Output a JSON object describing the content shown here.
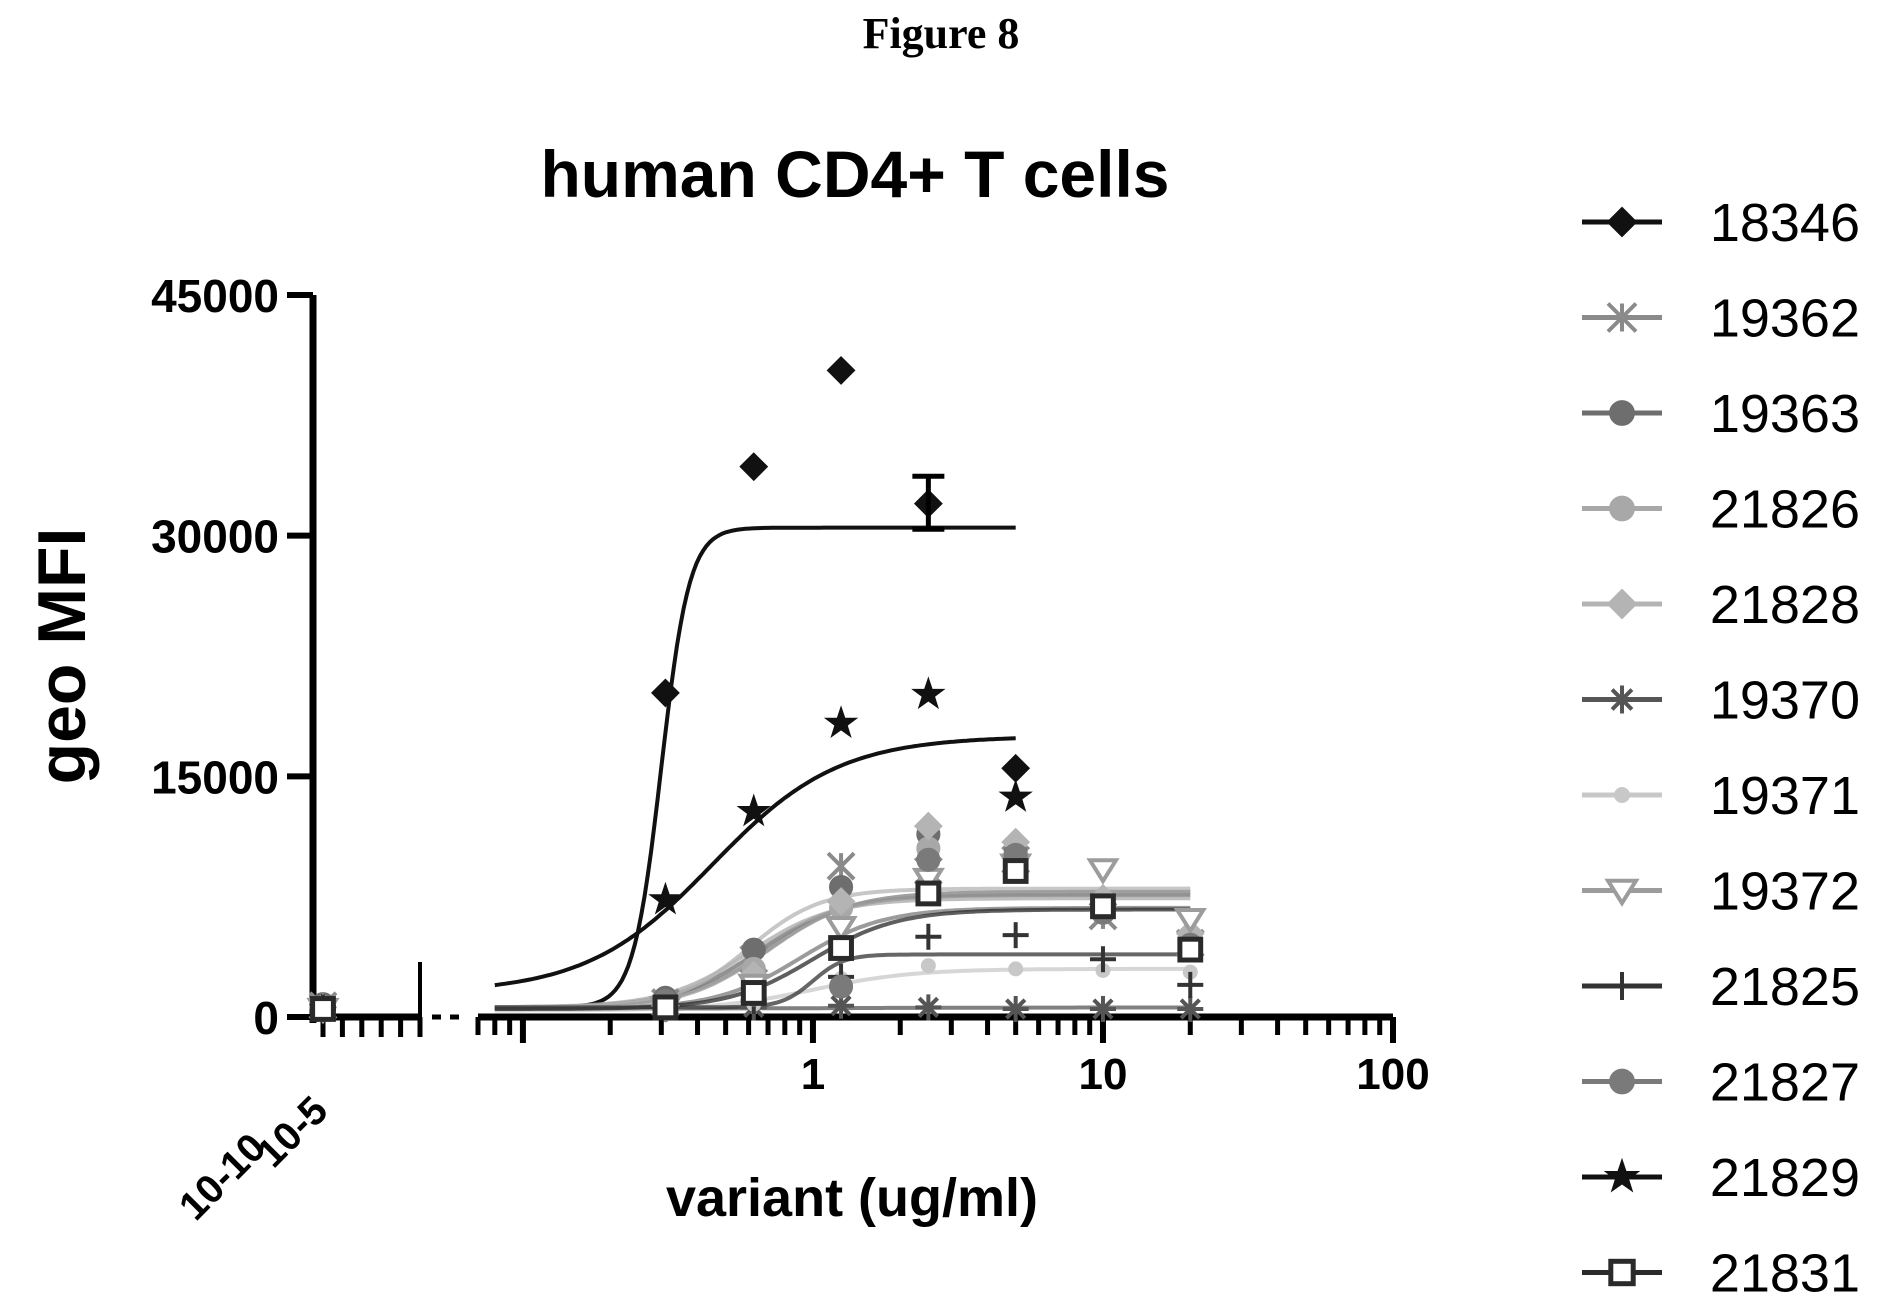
{
  "figure_label": "Figure 8",
  "chart_data": {
    "type": "scatter",
    "title": "human CD4+ T cells",
    "xlabel": "variant (ug/ml)",
    "ylabel": "geo MFI",
    "x_scale": "log",
    "x_segments": [
      {
        "ticks": [
          "10-10",
          "10-5"
        ],
        "range": [
          1e-10,
          1e-05
        ]
      },
      {
        "ticks": [
          "1",
          "10",
          "100"
        ],
        "range": [
          0.07,
          100
        ]
      }
    ],
    "yticks": [
      "0",
      "15000",
      "30000",
      "45000"
    ],
    "ylim": [
      0,
      45000
    ],
    "legend_position": "right",
    "series": [
      {
        "name": "18346",
        "color": "#111111",
        "marker": "diamond",
        "points": [
          [
            0.31,
            20200
          ],
          [
            0.625,
            34300
          ],
          [
            1.25,
            40300
          ],
          [
            2.5,
            32000
          ],
          [
            5,
            15500
          ]
        ],
        "fit": {
          "bottom": 600,
          "top": 30500,
          "ec50": 0.3,
          "hill": 9,
          "xmin": 0.08,
          "xmax": 5
        }
      },
      {
        "name": "19362",
        "color": "#8a8a8a",
        "marker": "x",
        "points": [
          [
            1e-10,
            700
          ],
          [
            0.31,
            900
          ],
          [
            0.625,
            3600
          ],
          [
            1.25,
            9400
          ],
          [
            2.5,
            9100
          ],
          [
            5,
            9800
          ],
          [
            10,
            6300
          ],
          [
            20,
            4600
          ]
        ],
        "fit": {
          "bottom": 600,
          "top": 7800,
          "ec50": 0.7,
          "hill": 3,
          "xmin": 0.08,
          "xmax": 20
        }
      },
      {
        "name": "19363",
        "color": "#6e6e6e",
        "marker": "octagon",
        "points": [
          [
            1e-10,
            800
          ],
          [
            0.31,
            1200
          ],
          [
            0.625,
            4200
          ],
          [
            1.25,
            8100
          ],
          [
            2.5,
            11400
          ],
          [
            5,
            10200
          ],
          [
            10,
            6600
          ],
          [
            20,
            4600
          ]
        ],
        "fit": {
          "bottom": 600,
          "top": 7600,
          "ec50": 0.65,
          "hill": 3,
          "xmin": 0.08,
          "xmax": 20
        }
      },
      {
        "name": "21826",
        "color": "#a8a8a8",
        "marker": "circle",
        "points": [
          [
            1e-10,
            600
          ],
          [
            0.31,
            800
          ],
          [
            0.625,
            3000
          ],
          [
            1.25,
            6800
          ],
          [
            2.5,
            10500
          ],
          [
            5,
            10000
          ],
          [
            10,
            6800
          ],
          [
            20,
            5000
          ]
        ],
        "fit": {
          "bottom": 600,
          "top": 7400,
          "ec50": 0.6,
          "hill": 3,
          "xmin": 0.08,
          "xmax": 20
        }
      },
      {
        "name": "21828",
        "color": "#b4b4b4",
        "marker": "diamond",
        "points": [
          [
            1e-10,
            600
          ],
          [
            0.31,
            700
          ],
          [
            0.625,
            2600
          ],
          [
            1.25,
            7200
          ],
          [
            2.5,
            11900
          ],
          [
            5,
            10900
          ],
          [
            10,
            7400
          ],
          [
            20,
            5200
          ]
        ],
        "fit": {
          "bottom": 600,
          "top": 8000,
          "ec50": 0.6,
          "hill": 3.5,
          "xmin": 0.08,
          "xmax": 20
        }
      },
      {
        "name": "19370",
        "color": "#555555",
        "marker": "asterisk",
        "points": [
          [
            1e-10,
            500
          ],
          [
            0.31,
            500
          ],
          [
            0.625,
            600
          ],
          [
            1.25,
            700
          ],
          [
            2.5,
            600
          ],
          [
            5,
            500
          ],
          [
            10,
            500
          ],
          [
            20,
            500
          ]
        ],
        "fit": {
          "bottom": 500,
          "top": 600,
          "ec50": 1,
          "hill": 1,
          "xmin": 0.08,
          "xmax": 20
        }
      },
      {
        "name": "19371",
        "color": "#c8c8c8",
        "marker": "dot",
        "points": [
          [
            1e-10,
            400
          ],
          [
            0.31,
            500
          ],
          [
            0.625,
            800
          ],
          [
            1.25,
            2400
          ],
          [
            2.5,
            3200
          ],
          [
            5,
            3000
          ],
          [
            10,
            2900
          ],
          [
            20,
            2800
          ]
        ],
        "fit": {
          "bottom": 400,
          "top": 3000,
          "ec50": 1,
          "hill": 2.5,
          "xmin": 0.08,
          "xmax": 20
        }
      },
      {
        "name": "19372",
        "color": "#9c9c9c",
        "marker": "triangle-down",
        "points": [
          [
            1e-10,
            500
          ],
          [
            0.31,
            600
          ],
          [
            0.625,
            2000
          ],
          [
            1.25,
            5600
          ],
          [
            2.5,
            8600
          ],
          [
            5,
            9500
          ],
          [
            10,
            9200
          ],
          [
            20,
            6100
          ]
        ],
        "fit": {
          "bottom": 500,
          "top": 7800,
          "ec50": 0.7,
          "hill": 3,
          "xmin": 0.08,
          "xmax": 20
        }
      },
      {
        "name": "21825",
        "color": "#333333",
        "marker": "plus",
        "points": [
          [
            1e-10,
            600
          ],
          [
            0.31,
            700
          ],
          [
            0.625,
            1000
          ],
          [
            1.25,
            2500
          ],
          [
            2.5,
            5000
          ],
          [
            5,
            5100
          ],
          [
            10,
            3600
          ],
          [
            20,
            2000
          ]
        ],
        "fit": {
          "bottom": 600,
          "top": 3900,
          "ec50": 1.0,
          "hill": 8,
          "xmin": 0.08,
          "xmax": 20
        }
      },
      {
        "name": "21827",
        "color": "#7a7a7a",
        "marker": "octagon",
        "points": [
          [
            1e-10,
            500
          ],
          [
            0.31,
            1000
          ],
          [
            0.625,
            1400
          ],
          [
            1.25,
            1900
          ],
          [
            2.5,
            9800
          ],
          [
            5,
            10100
          ],
          [
            10,
            6500
          ],
          [
            20,
            4500
          ]
        ],
        "fit": {
          "bottom": 500,
          "top": 6800,
          "ec50": 0.9,
          "hill": 3,
          "xmin": 0.08,
          "xmax": 20
        }
      },
      {
        "name": "21829",
        "color": "#111111",
        "marker": "star",
        "points": [
          [
            0.31,
            7300
          ],
          [
            0.625,
            12800
          ],
          [
            1.25,
            18300
          ],
          [
            2.5,
            20100
          ],
          [
            5,
            13700
          ]
        ],
        "fit": {
          "bottom": 1500,
          "top": 17500,
          "ec50": 0.45,
          "hill": 2,
          "xmin": 0.08,
          "xmax": 5
        }
      },
      {
        "name": "21831",
        "color": "#2a2a2a",
        "marker": "square",
        "points": [
          [
            1e-10,
            500
          ],
          [
            0.31,
            600
          ],
          [
            0.625,
            1500
          ],
          [
            1.25,
            4300
          ],
          [
            2.5,
            7700
          ],
          [
            5,
            9100
          ],
          [
            10,
            6900
          ],
          [
            20,
            4200
          ]
        ],
        "fit": {
          "bottom": 500,
          "top": 6700,
          "ec50": 1.0,
          "hill": 3,
          "xmin": 0.08,
          "xmax": 20
        }
      }
    ],
    "error_bars": [
      {
        "series": "18346",
        "x": 2.5,
        "low": 30400,
        "high": 33700
      }
    ]
  }
}
